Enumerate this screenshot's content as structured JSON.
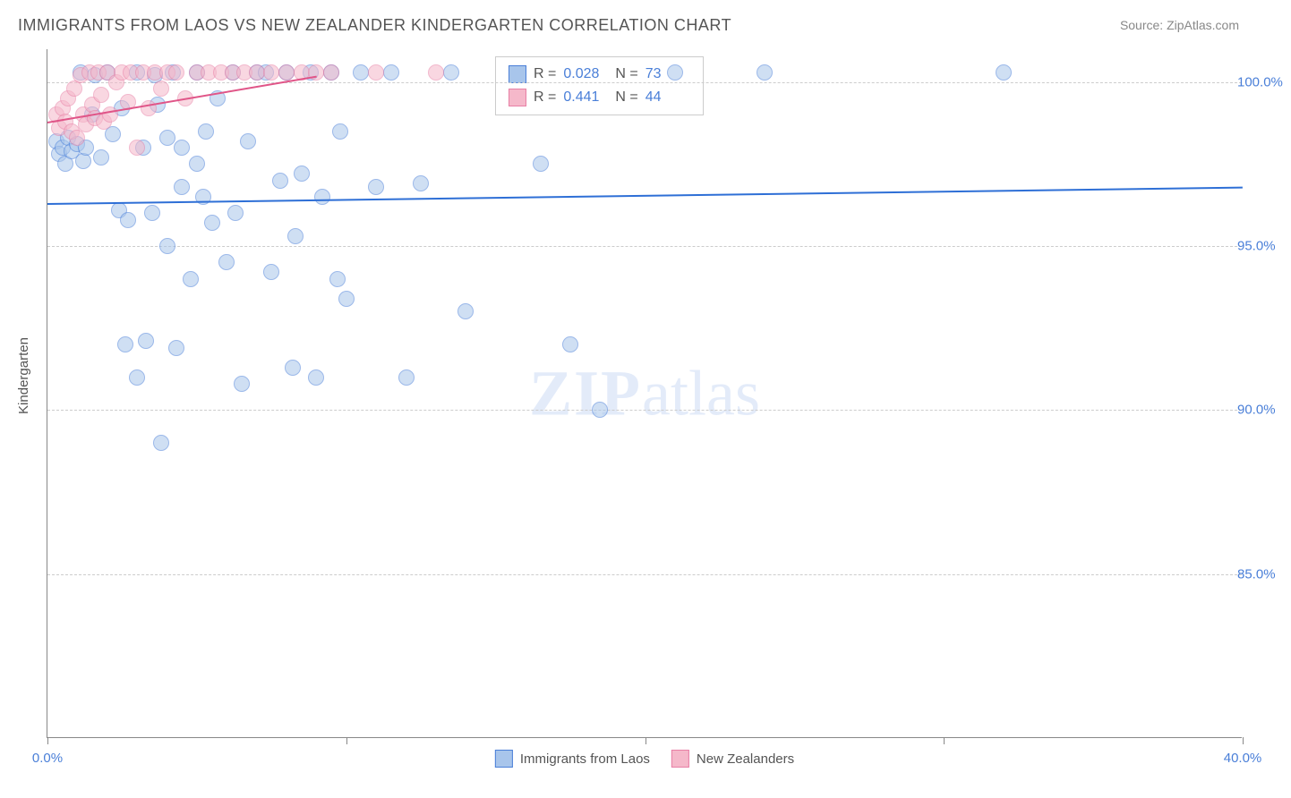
{
  "title": "IMMIGRANTS FROM LAOS VS NEW ZEALANDER KINDERGARTEN CORRELATION CHART",
  "source": "Source: ZipAtlas.com",
  "watermark_zip": "ZIP",
  "watermark_atlas": "atlas",
  "y_axis_label": "Kindergarten",
  "chart": {
    "type": "scatter",
    "xlim": [
      0,
      40
    ],
    "ylim": [
      80,
      101
    ],
    "x_ticks": [
      0,
      10,
      20,
      30,
      40
    ],
    "x_tick_labels": [
      "0.0%",
      "",
      "",
      "",
      "40.0%"
    ],
    "y_gridlines": [
      85,
      90,
      95,
      100
    ],
    "y_tick_labels": [
      "85.0%",
      "90.0%",
      "95.0%",
      "100.0%"
    ],
    "background_color": "#ffffff",
    "grid_color": "#cccccc",
    "axis_color": "#888888",
    "marker_radius": 9,
    "marker_opacity": 0.55,
    "series": [
      {
        "id": "laos",
        "label": "Immigrants from Laos",
        "R": "0.028",
        "N": "73",
        "fill": "#a8c5eb",
        "stroke": "#4a7fd8",
        "trend": {
          "x1": 0,
          "y1": 96.3,
          "x2": 40,
          "y2": 96.8,
          "color": "#2e6fd6",
          "width": 2
        },
        "points": [
          [
            0.3,
            98.2
          ],
          [
            0.4,
            97.8
          ],
          [
            0.5,
            98.0
          ],
          [
            0.6,
            97.5
          ],
          [
            0.7,
            98.3
          ],
          [
            0.8,
            97.9
          ],
          [
            1.0,
            98.1
          ],
          [
            1.1,
            100.3
          ],
          [
            1.2,
            97.6
          ],
          [
            1.3,
            98.0
          ],
          [
            1.5,
            99.0
          ],
          [
            1.6,
            100.2
          ],
          [
            1.8,
            97.7
          ],
          [
            2.0,
            100.3
          ],
          [
            2.2,
            98.4
          ],
          [
            2.4,
            96.1
          ],
          [
            2.5,
            99.2
          ],
          [
            2.7,
            95.8
          ],
          [
            2.6,
            92.0
          ],
          [
            3.0,
            100.3
          ],
          [
            3.0,
            91.0
          ],
          [
            3.2,
            98.0
          ],
          [
            3.3,
            92.1
          ],
          [
            3.5,
            96.0
          ],
          [
            3.6,
            100.2
          ],
          [
            3.7,
            99.3
          ],
          [
            3.8,
            89.0
          ],
          [
            4.0,
            98.3
          ],
          [
            4.0,
            95.0
          ],
          [
            4.2,
            100.3
          ],
          [
            4.3,
            91.9
          ],
          [
            4.5,
            96.8
          ],
          [
            4.5,
            98.0
          ],
          [
            4.8,
            94.0
          ],
          [
            5.0,
            100.3
          ],
          [
            5.0,
            97.5
          ],
          [
            5.2,
            96.5
          ],
          [
            5.3,
            98.5
          ],
          [
            5.5,
            95.7
          ],
          [
            5.7,
            99.5
          ],
          [
            6.0,
            94.5
          ],
          [
            6.2,
            100.3
          ],
          [
            6.3,
            96.0
          ],
          [
            6.5,
            90.8
          ],
          [
            6.7,
            98.2
          ],
          [
            7.0,
            100.3
          ],
          [
            7.3,
            100.3
          ],
          [
            7.5,
            94.2
          ],
          [
            7.8,
            97.0
          ],
          [
            8.0,
            100.3
          ],
          [
            8.2,
            91.3
          ],
          [
            8.3,
            95.3
          ],
          [
            8.5,
            97.2
          ],
          [
            8.8,
            100.3
          ],
          [
            9.0,
            91.0
          ],
          [
            9.2,
            96.5
          ],
          [
            9.5,
            100.3
          ],
          [
            9.7,
            94.0
          ],
          [
            9.8,
            98.5
          ],
          [
            10.0,
            93.4
          ],
          [
            10.5,
            100.3
          ],
          [
            11.0,
            96.8
          ],
          [
            11.5,
            100.3
          ],
          [
            12.0,
            91.0
          ],
          [
            12.5,
            96.9
          ],
          [
            13.5,
            100.3
          ],
          [
            14.0,
            93.0
          ],
          [
            16.5,
            97.5
          ],
          [
            17.5,
            92.0
          ],
          [
            18.5,
            90.0
          ],
          [
            21.0,
            100.3
          ],
          [
            24.0,
            100.3
          ],
          [
            32.0,
            100.3
          ]
        ]
      },
      {
        "id": "nz",
        "label": "New Zealanders",
        "R": "0.441",
        "N": "44",
        "fill": "#f5b8ca",
        "stroke": "#e87fa5",
        "trend": {
          "x1": 0,
          "y1": 98.8,
          "x2": 9,
          "y2": 100.2,
          "color": "#e05588",
          "width": 2
        },
        "points": [
          [
            0.3,
            99.0
          ],
          [
            0.4,
            98.6
          ],
          [
            0.5,
            99.2
          ],
          [
            0.6,
            98.8
          ],
          [
            0.7,
            99.5
          ],
          [
            0.8,
            98.5
          ],
          [
            0.9,
            99.8
          ],
          [
            1.0,
            98.3
          ],
          [
            1.1,
            100.2
          ],
          [
            1.2,
            99.0
          ],
          [
            1.3,
            98.7
          ],
          [
            1.4,
            100.3
          ],
          [
            1.5,
            99.3
          ],
          [
            1.6,
            98.9
          ],
          [
            1.7,
            100.3
          ],
          [
            1.8,
            99.6
          ],
          [
            1.9,
            98.8
          ],
          [
            2.0,
            100.3
          ],
          [
            2.1,
            99.0
          ],
          [
            2.3,
            100.0
          ],
          [
            2.5,
            100.3
          ],
          [
            2.7,
            99.4
          ],
          [
            2.8,
            100.3
          ],
          [
            3.0,
            98.0
          ],
          [
            3.2,
            100.3
          ],
          [
            3.4,
            99.2
          ],
          [
            3.6,
            100.3
          ],
          [
            3.8,
            99.8
          ],
          [
            4.0,
            100.3
          ],
          [
            4.3,
            100.3
          ],
          [
            4.6,
            99.5
          ],
          [
            5.0,
            100.3
          ],
          [
            5.4,
            100.3
          ],
          [
            5.8,
            100.3
          ],
          [
            6.2,
            100.3
          ],
          [
            6.6,
            100.3
          ],
          [
            7.0,
            100.3
          ],
          [
            7.5,
            100.3
          ],
          [
            8.0,
            100.3
          ],
          [
            8.5,
            100.3
          ],
          [
            9.0,
            100.3
          ],
          [
            9.5,
            100.3
          ],
          [
            11.0,
            100.3
          ],
          [
            13.0,
            100.3
          ]
        ]
      }
    ],
    "stats_legend": {
      "R_label": "R =",
      "N_label": "N ="
    }
  }
}
